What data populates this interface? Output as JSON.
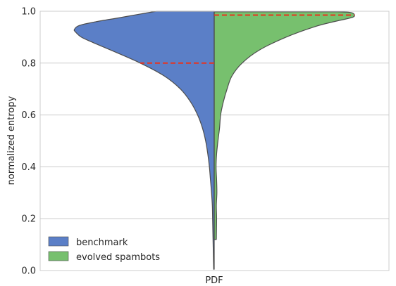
{
  "chart_data": {
    "type": "violin",
    "split": true,
    "title": "",
    "xlabel": "",
    "ylabel": "normalized entropy",
    "ylim": [
      0.0,
      1.0
    ],
    "yticks": [
      "0.0",
      "0.2",
      "0.4",
      "0.6",
      "0.8",
      "1.0"
    ],
    "categories": [
      "PDF"
    ],
    "grid": true,
    "legend_position": "lower-left",
    "series": [
      {
        "name": "benchmark",
        "side": "left",
        "color": "#4c72b0",
        "fill": "#5b7fc7",
        "median": 0.8,
        "density": [
          [
            0.005,
            0.01
          ],
          [
            0.05,
            0.015
          ],
          [
            0.1,
            0.02
          ],
          [
            0.15,
            0.025
          ],
          [
            0.2,
            0.03
          ],
          [
            0.25,
            0.035
          ],
          [
            0.3,
            0.05
          ],
          [
            0.35,
            0.07
          ],
          [
            0.4,
            0.09
          ],
          [
            0.45,
            0.12
          ],
          [
            0.5,
            0.16
          ],
          [
            0.55,
            0.22
          ],
          [
            0.6,
            0.31
          ],
          [
            0.65,
            0.44
          ],
          [
            0.7,
            0.63
          ],
          [
            0.75,
            0.93
          ],
          [
            0.8,
            1.38
          ],
          [
            0.85,
            1.93
          ],
          [
            0.88,
            2.27
          ],
          [
            0.9,
            2.48
          ],
          [
            0.92,
            2.59
          ],
          [
            0.93,
            2.61
          ],
          [
            0.945,
            2.52
          ],
          [
            0.96,
            2.2
          ],
          [
            0.975,
            1.77
          ],
          [
            0.99,
            1.36
          ],
          [
            1.0,
            1.08
          ]
        ]
      },
      {
        "name": "evolved spambots",
        "side": "right",
        "color": "#55a868",
        "fill": "#77c06e",
        "median": 0.985,
        "density": [
          [
            0.12,
            0.04
          ],
          [
            0.2,
            0.045
          ],
          [
            0.25,
            0.04
          ],
          [
            0.3,
            0.05
          ],
          [
            0.35,
            0.045
          ],
          [
            0.4,
            0.035
          ],
          [
            0.45,
            0.045
          ],
          [
            0.5,
            0.07
          ],
          [
            0.55,
            0.1
          ],
          [
            0.6,
            0.12
          ],
          [
            0.65,
            0.17
          ],
          [
            0.7,
            0.24
          ],
          [
            0.75,
            0.33
          ],
          [
            0.8,
            0.52
          ],
          [
            0.85,
            0.84
          ],
          [
            0.9,
            1.34
          ],
          [
            0.94,
            1.87
          ],
          [
            0.96,
            2.24
          ],
          [
            0.975,
            2.56
          ],
          [
            0.985,
            2.62
          ],
          [
            0.995,
            2.55
          ],
          [
            0.998,
            2.3
          ]
        ]
      }
    ]
  }
}
